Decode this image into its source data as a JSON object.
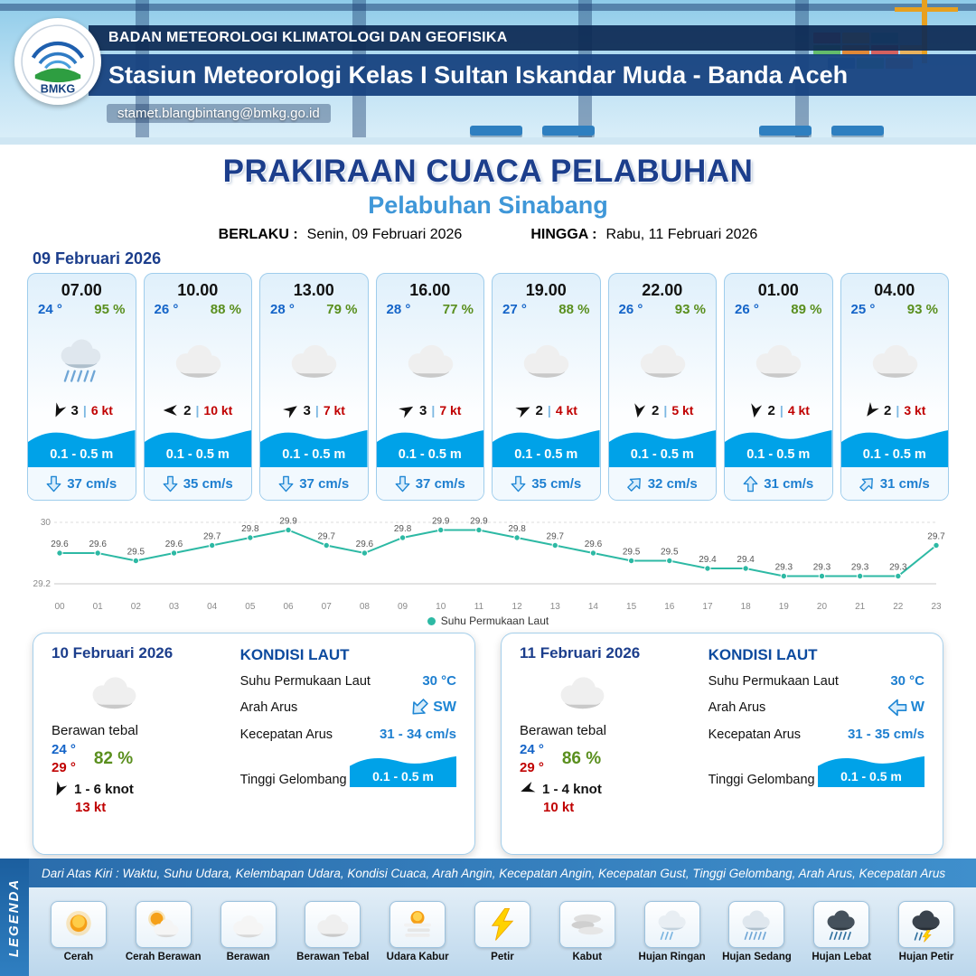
{
  "header": {
    "logo_text": "BMKG",
    "agency": "BADAN METEOROLOGI KLIMATOLOGI DAN GEOFISIKA",
    "station": "Stasiun Meteorologi Kelas I Sultan Iskandar Muda - Banda Aceh",
    "email": "stamet.blangbintang@bmkg.go.id"
  },
  "title": {
    "main": "PRAKIRAAN CUACA PELABUHAN",
    "subtitle": "Pelabuhan Sinabang",
    "berlaku_label": "BERLAKU :",
    "berlaku_value": "Senin, 09 Februari 2026",
    "hingga_label": "HINGGA :",
    "hingga_value": "Rabu, 11 Februari 2026"
  },
  "forecast_date": "09 Februari 2026",
  "hourly_cards": [
    {
      "time": "07.00",
      "temp": "24 °",
      "humidity": "95 %",
      "weather": "hujan-sedang",
      "wind_dir_deg": 115,
      "wind_force": "3",
      "wind_speed": "6 kt",
      "wave": "0.1 - 0.5 m",
      "current_dir_deg": 180,
      "current_speed": "37 cm/s"
    },
    {
      "time": "10.00",
      "temp": "26 °",
      "humidity": "88 %",
      "weather": "berawan-tebal",
      "wind_dir_deg": 180,
      "wind_force": "2",
      "wind_speed": "10 kt",
      "wave": "0.1 - 0.5 m",
      "current_dir_deg": 180,
      "current_speed": "35 cm/s"
    },
    {
      "time": "13.00",
      "temp": "28 °",
      "humidity": "79 %",
      "weather": "berawan-tebal",
      "wind_dir_deg": -35,
      "wind_force": "3",
      "wind_speed": "7 kt",
      "wave": "0.1 - 0.5 m",
      "current_dir_deg": 180,
      "current_speed": "37 cm/s"
    },
    {
      "time": "16.00",
      "temp": "28 °",
      "humidity": "77 %",
      "weather": "berawan-tebal",
      "wind_dir_deg": -30,
      "wind_force": "3",
      "wind_speed": "7 kt",
      "wave": "0.1 - 0.5 m",
      "current_dir_deg": 180,
      "current_speed": "37 cm/s"
    },
    {
      "time": "19.00",
      "temp": "27 °",
      "humidity": "88 %",
      "weather": "berawan-tebal",
      "wind_dir_deg": -25,
      "wind_force": "2",
      "wind_speed": "4 kt",
      "wave": "0.1 - 0.5 m",
      "current_dir_deg": 180,
      "current_speed": "35 cm/s"
    },
    {
      "time": "22.00",
      "temp": "26 °",
      "humidity": "93 %",
      "weather": "berawan-tebal",
      "wind_dir_deg": 100,
      "wind_force": "2",
      "wind_speed": "5 kt",
      "wave": "0.1 - 0.5 m",
      "current_dir_deg": 45,
      "current_speed": "32 cm/s"
    },
    {
      "time": "01.00",
      "temp": "26 °",
      "humidity": "89 %",
      "weather": "berawan-tebal",
      "wind_dir_deg": 100,
      "wind_force": "2",
      "wind_speed": "4 kt",
      "wave": "0.1 - 0.5 m",
      "current_dir_deg": 0,
      "current_speed": "31 cm/s"
    },
    {
      "time": "04.00",
      "temp": "25 °",
      "humidity": "93 %",
      "weather": "berawan-tebal",
      "wind_dir_deg": 125,
      "wind_force": "2",
      "wind_speed": "3 kt",
      "wave": "0.1 - 0.5 m",
      "current_dir_deg": 45,
      "current_speed": "31 cm/s"
    }
  ],
  "chart_data": {
    "type": "line",
    "title": "",
    "x": [
      "00",
      "01",
      "02",
      "03",
      "04",
      "05",
      "06",
      "07",
      "08",
      "09",
      "10",
      "11",
      "12",
      "13",
      "14",
      "15",
      "16",
      "17",
      "18",
      "19",
      "20",
      "21",
      "22",
      "23"
    ],
    "series": [
      {
        "name": "Suhu Permukaan Laut",
        "values": [
          29.6,
          29.6,
          29.5,
          29.6,
          29.7,
          29.8,
          29.9,
          29.7,
          29.6,
          29.8,
          29.9,
          29.9,
          29.8,
          29.7,
          29.6,
          29.5,
          29.5,
          29.4,
          29.4,
          29.3,
          29.3,
          29.3,
          29.3,
          29.7
        ]
      }
    ],
    "ylim": [
      29.2,
      30
    ],
    "line_color": "#2db9a4",
    "legend_position": "bottom",
    "grid": true
  },
  "daily_cards": [
    {
      "date": "10 Februari 2026",
      "weather": "berawan-tebal",
      "condition": "Berawan tebal",
      "temp_min": "24 °",
      "temp_max": "29 °",
      "humidity": "82 %",
      "wind_dir_deg": 115,
      "wind_range": "1  - 6 knot",
      "gust": "13 kt",
      "sea_title": "KONDISI LAUT",
      "sst_label": "Suhu Permukaan Laut",
      "sst_value": "30 °C",
      "current_dir_label": "Arah Arus",
      "current_dir": "SW",
      "current_dir_deg": 225,
      "current_speed_label": "Kecepatan Arus",
      "current_speed": "31  - 34 cm/s",
      "wave_label": "Tinggi Gelombang",
      "wave_value": "0.1 - 0.5 m"
    },
    {
      "date": "11 Februari 2026",
      "weather": "berawan-tebal",
      "condition": "Berawan tebal",
      "temp_min": "24 °",
      "temp_max": "29 °",
      "humidity": "86 %",
      "wind_dir_deg": 160,
      "wind_range": "1  - 4 knot",
      "gust": "10 kt",
      "sea_title": "KONDISI LAUT",
      "sst_label": "Suhu Permukaan Laut",
      "sst_value": "30 °C",
      "current_dir_label": "Arah Arus",
      "current_dir": "W",
      "current_dir_deg": 270,
      "current_speed_label": "Kecepatan Arus",
      "current_speed": "31  - 35 cm/s",
      "wave_label": "Tinggi Gelombang",
      "wave_value": "0.1 - 0.5 m"
    }
  ],
  "legend": {
    "side_label": "LEGENDA",
    "header_note": "Dari Atas Kiri : Waktu, Suhu Udara, Kelembapan Udara, Kondisi Cuaca, Arah Angin, Kecepatan Angin, Kecepatan Gust, Tinggi Gelombang, Arah Arus, Kecepatan Arus",
    "items": [
      {
        "label": "Cerah",
        "icon": "cerah"
      },
      {
        "label": "Cerah Berawan",
        "icon": "cerah-berawan"
      },
      {
        "label": "Berawan",
        "icon": "berawan"
      },
      {
        "label": "Berawan Tebal",
        "icon": "berawan-tebal"
      },
      {
        "label": "Udara Kabur",
        "icon": "udara-kabur"
      },
      {
        "label": "Petir",
        "icon": "petir"
      },
      {
        "label": "Kabut",
        "icon": "kabut"
      },
      {
        "label": "Hujan Ringan",
        "icon": "hujan-ringan"
      },
      {
        "label": "Hujan Sedang",
        "icon": "hujan-sedang"
      },
      {
        "label": "Hujan Lebat",
        "icon": "hujan-lebat"
      },
      {
        "label": "Hujan Petir",
        "icon": "hujan-petir"
      }
    ]
  },
  "colors": {
    "navy": "#1c3e8c",
    "accent_blue": "#3f97d8",
    "wave_blue": "#00a2e8",
    "temp_blue": "#1464c8",
    "humidity_green": "#5a8f1e",
    "speed_red": "#c00000",
    "chart_teal": "#2db9a4"
  }
}
